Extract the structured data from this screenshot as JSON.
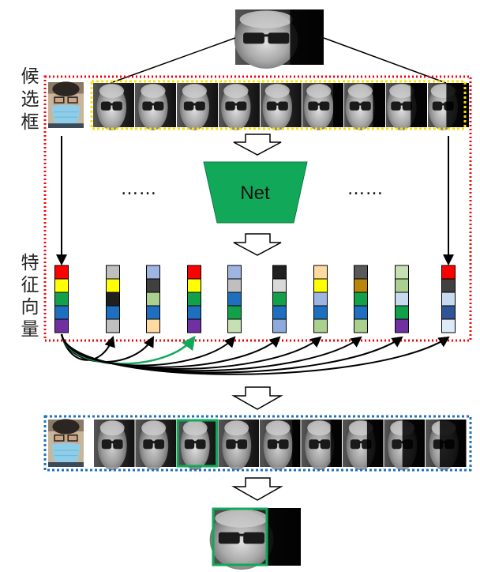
{
  "labels": {
    "candidates": [
      "候",
      "选",
      "框"
    ],
    "features": [
      "特",
      "征",
      "向",
      "量"
    ],
    "net": "Net",
    "ellipsis_left": "……",
    "ellipsis_right": "……"
  },
  "colors": {
    "candidate_border": "#ff0000",
    "gallery_border": "#ffe000",
    "result_border": "#1f6fbf",
    "net_fill": "#12a85a",
    "selected": "#12a85a",
    "arrow": "#000000"
  },
  "feature_vectors": [
    [
      "#ff0000",
      "#ffff00",
      "#13a04a",
      "#1f6fc0",
      "#7030a0"
    ],
    [
      "#bfbfbf",
      "#ffff00",
      "#202020",
      "#1f6fc0",
      "#bfbfbf"
    ],
    [
      "#9db5e0",
      "#404040",
      "#a9d08e",
      "#1f6fc0",
      "#ffd9a0"
    ],
    [
      "#ff0000",
      "#ffff00",
      "#13a04a",
      "#1f6fc0",
      "#7030a0"
    ],
    [
      "#9db5e0",
      "#bfbfbf",
      "#1f6fc0",
      "#13a04a",
      "#c6e0b4"
    ],
    [
      "#202020",
      "#d9d9d9",
      "#13a04a",
      "#1f6fc0",
      "#8eaadb"
    ],
    [
      "#ffd9a0",
      "#ffff00",
      "#9db5e0",
      "#1f6fc0",
      "#a9d08e"
    ],
    [
      "#595959",
      "#b8860b",
      "#13a04a",
      "#1f6fc0",
      "#a9d08e"
    ],
    [
      "#c6e0b4",
      "#a9d08e",
      "#c9d9f0",
      "#13a04a",
      "#7030a0"
    ],
    [
      "#ff0000",
      "#404040",
      "#c9d9f0",
      "#2f5597",
      "#deebf7"
    ]
  ],
  "gallery_count": 9,
  "selected_index": 3
}
